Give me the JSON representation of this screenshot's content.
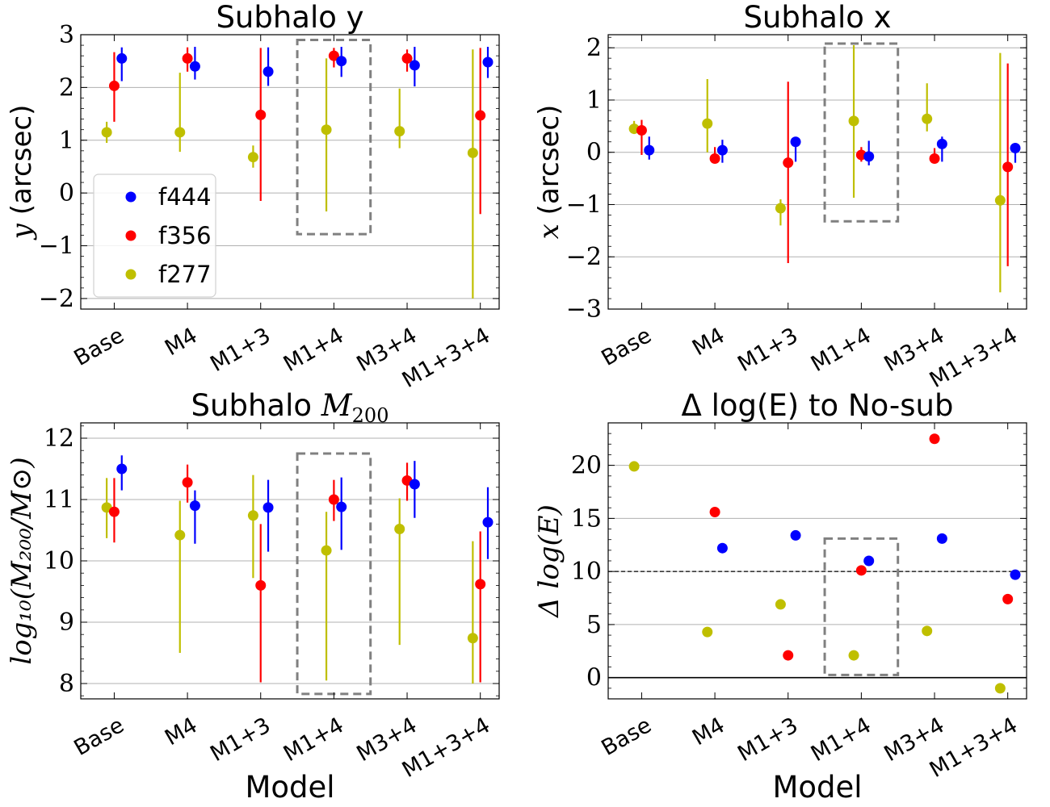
{
  "colors": {
    "f444": "#0000ff",
    "f356": "#ff0000",
    "f277": "#bfbf00"
  },
  "legend": [
    "f444",
    "f356",
    "f277"
  ],
  "chart_data": [
    {
      "id": "y",
      "type": "scatter",
      "title": "Subhalo y",
      "ylabel_math": "y",
      "ylabel_rest": " (arcsec)",
      "xlabel": "",
      "ylim": [
        -2.2,
        3.0
      ],
      "yticks": [
        -2,
        -1,
        0,
        1,
        2,
        3
      ],
      "ytick_labels": [
        "−2",
        "−1",
        "0",
        "1",
        "2",
        "3"
      ],
      "categories": [
        "Base",
        "M4",
        "M1+3",
        "M1+4",
        "M3+4",
        "M1+3+4"
      ],
      "highlight": {
        "category_index": 3,
        "ymin": -0.78,
        "ymax": 2.9
      },
      "hlines": [],
      "show_legend": true,
      "series": [
        {
          "name": "f444",
          "values": [
            2.55,
            2.4,
            2.3,
            2.5,
            2.42,
            2.48
          ],
          "lower": [
            2.12,
            2.15,
            2.03,
            2.2,
            2.02,
            2.18
          ],
          "upper": [
            2.76,
            2.77,
            2.76,
            2.77,
            2.77,
            2.77
          ]
        },
        {
          "name": "f356",
          "values": [
            2.03,
            2.55,
            1.48,
            2.6,
            2.55,
            1.47
          ],
          "lower": [
            1.35,
            2.3,
            -0.15,
            2.38,
            2.3,
            -0.4
          ],
          "upper": [
            2.67,
            2.76,
            2.75,
            2.75,
            2.72,
            2.75
          ]
        },
        {
          "name": "f277",
          "values": [
            1.15,
            1.15,
            0.68,
            1.2,
            1.17,
            0.76
          ],
          "lower": [
            0.95,
            0.78,
            0.48,
            -0.35,
            0.85,
            -2.0
          ],
          "upper": [
            1.35,
            2.28,
            0.9,
            2.55,
            1.98,
            2.72
          ]
        }
      ]
    },
    {
      "id": "x",
      "type": "scatter",
      "title": "Subhalo x",
      "ylabel_math": "x",
      "ylabel_rest": " (arcsec)",
      "xlabel": "",
      "ylim": [
        -3.0,
        2.25
      ],
      "yticks": [
        -3,
        -2,
        -1,
        0,
        1,
        2
      ],
      "ytick_labels": [
        "−3",
        "−2",
        "−1",
        "0",
        "1",
        "2"
      ],
      "categories": [
        "Base",
        "M4",
        "M1+3",
        "M1+4",
        "M3+4",
        "M1+3+4"
      ],
      "highlight": {
        "category_index": 3,
        "ymin": -1.32,
        "ymax": 2.08
      },
      "hlines": [],
      "show_legend": false,
      "series": [
        {
          "name": "f444",
          "values": [
            0.04,
            0.04,
            0.2,
            -0.08,
            0.16,
            0.08
          ],
          "lower": [
            -0.14,
            -0.2,
            -0.18,
            -0.25,
            -0.18,
            -0.2
          ],
          "upper": [
            0.3,
            0.24,
            0.25,
            0.22,
            0.3,
            0.15
          ]
        },
        {
          "name": "f356",
          "values": [
            0.42,
            -0.12,
            -0.2,
            -0.05,
            -0.12,
            -0.28
          ],
          "lower": [
            -0.05,
            -0.2,
            -2.12,
            -0.18,
            -0.2,
            -2.18
          ],
          "upper": [
            0.62,
            0.1,
            1.35,
            0.1,
            0.08,
            1.7
          ]
        },
        {
          "name": "f277",
          "values": [
            0.45,
            0.55,
            -1.07,
            0.6,
            0.64,
            -0.92
          ],
          "lower": [
            0.35,
            0.0,
            -1.4,
            -0.87,
            0.4,
            -2.68
          ],
          "upper": [
            0.6,
            1.4,
            -0.9,
            2.05,
            1.32,
            1.9
          ]
        }
      ]
    },
    {
      "id": "m200",
      "type": "scatter",
      "title": "Subhalo ",
      "title_math": "M",
      "title_sub": "200",
      "ylabel_math": "log₁₀(M₂₀₀/M⊙)",
      "ylabel_rest": "",
      "xlabel": "Model",
      "ylim": [
        7.75,
        12.25
      ],
      "yticks": [
        8,
        9,
        10,
        11,
        12
      ],
      "ytick_labels": [
        "8",
        "9",
        "10",
        "11",
        "12"
      ],
      "categories": [
        "Base",
        "M4",
        "M1+3",
        "M1+4",
        "M3+4",
        "M1+3+4"
      ],
      "highlight": {
        "category_index": 3,
        "ymin": 7.83,
        "ymax": 11.75
      },
      "hlines": [],
      "show_legend": false,
      "series": [
        {
          "name": "f444",
          "values": [
            11.5,
            10.9,
            10.87,
            10.88,
            11.25,
            10.63
          ],
          "lower": [
            11.15,
            10.28,
            10.15,
            10.18,
            10.7,
            10.03
          ],
          "upper": [
            11.72,
            11.15,
            11.32,
            11.36,
            11.63,
            11.2
          ]
        },
        {
          "name": "f356",
          "values": [
            10.8,
            11.28,
            9.6,
            11.0,
            11.31,
            9.62
          ],
          "lower": [
            10.3,
            10.95,
            8.02,
            10.65,
            10.98,
            8.02
          ],
          "upper": [
            11.35,
            11.57,
            10.6,
            11.32,
            11.6,
            10.48
          ]
        },
        {
          "name": "f277",
          "values": [
            10.87,
            10.42,
            10.74,
            10.17,
            10.52,
            8.74
          ],
          "lower": [
            10.37,
            8.5,
            9.72,
            8.05,
            8.63,
            8.0
          ],
          "upper": [
            11.35,
            10.98,
            11.4,
            10.8,
            11.02,
            10.32
          ]
        }
      ]
    },
    {
      "id": "dlogE",
      "type": "scatter",
      "title": "Δ log(E) to No-sub",
      "ylabel_math": "Δ log(E)",
      "ylabel_rest": "",
      "xlabel": "Model",
      "ylim": [
        -2.0,
        24.0
      ],
      "yticks": [
        0,
        5,
        10,
        15,
        20
      ],
      "ytick_labels": [
        "0",
        "5",
        "10",
        "15",
        "20"
      ],
      "categories": [
        "Base",
        "M4",
        "M1+3",
        "M1+4",
        "M3+4",
        "M1+3+4"
      ],
      "highlight": {
        "category_index": 3,
        "ymin": 0.25,
        "ymax": 13.1
      },
      "hlines": [
        {
          "value": 10,
          "style": "dashed"
        },
        {
          "value": 0,
          "style": "solid"
        }
      ],
      "show_legend": false,
      "series": [
        {
          "name": "f444",
          "values": [
            null,
            12.2,
            13.4,
            11.0,
            13.1,
            9.7
          ]
        },
        {
          "name": "f356",
          "values": [
            null,
            15.6,
            2.1,
            10.1,
            22.5,
            7.4
          ]
        },
        {
          "name": "f277",
          "values": [
            19.9,
            4.3,
            6.9,
            2.1,
            4.4,
            -1.0
          ]
        }
      ]
    }
  ]
}
